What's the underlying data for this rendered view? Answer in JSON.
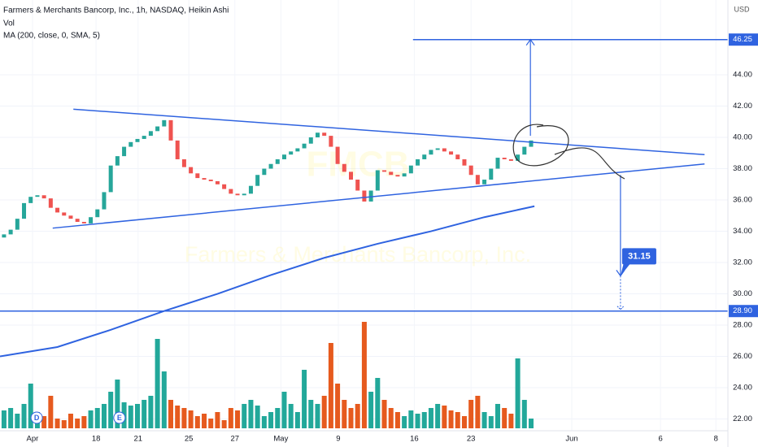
{
  "chart_data": {
    "type": "candlestick",
    "title": "Farmers & Merchants Bancorp, Inc., 1h, NASDAQ, Heikin Ashi",
    "indicators": [
      "Vol",
      "MA (200, close, 0, SMA, 5)"
    ],
    "currency": "USD",
    "watermark": {
      "symbol": "FMCB",
      "name": "Farmers & Merchants Bancorp, Inc."
    },
    "xlim": [
      -0.6,
      108.5
    ],
    "ylim": [
      21.25,
      48.78
    ],
    "grid": true,
    "up_color": "#26a69a",
    "down_color": "#ef5350",
    "volume_up_color": "#22a89a",
    "volume_down_color": "#e65a1e",
    "line_color": "#2f63e0",
    "xticks": [
      {
        "value": 4.27,
        "label": "Apr"
      },
      {
        "value": 13.8,
        "label": "18"
      },
      {
        "value": 20.1,
        "label": "21"
      },
      {
        "value": 27.7,
        "label": "25"
      },
      {
        "value": 34.6,
        "label": "27"
      },
      {
        "value": 41.5,
        "label": "May"
      },
      {
        "value": 50.1,
        "label": "9"
      },
      {
        "value": 61.5,
        "label": "16"
      },
      {
        "value": 70.0,
        "label": "23"
      },
      {
        "value": 85.1,
        "label": "Jun"
      },
      {
        "value": 98.4,
        "label": "6"
      },
      {
        "value": 106.7,
        "label": "8"
      }
    ],
    "yticks": [
      {
        "value": 22,
        "label": "22.00"
      },
      {
        "value": 24,
        "label": "24.00"
      },
      {
        "value": 26,
        "label": "26.00"
      },
      {
        "value": 28,
        "label": "28.00"
      },
      {
        "value": 30,
        "label": "30.00"
      },
      {
        "value": 32,
        "label": "32.00"
      },
      {
        "value": 34,
        "label": "34.00"
      },
      {
        "value": 36,
        "label": "36.00"
      },
      {
        "value": 38,
        "label": "38.00"
      },
      {
        "value": 40,
        "label": "40.00"
      },
      {
        "value": 42,
        "label": "42.00"
      },
      {
        "value": 44,
        "label": "44.00"
      }
    ],
    "open": [
      33.6,
      33.8,
      34.1,
      34.8,
      35.8,
      36.2,
      36.3,
      36.1,
      35.5,
      35.2,
      35.0,
      34.8,
      34.6,
      34.5,
      34.9,
      35.4,
      36.5,
      38.2,
      38.8,
      39.4,
      39.7,
      39.9,
      40.1,
      40.4,
      40.7,
      41.1,
      39.8,
      38.6,
      38.1,
      37.7,
      37.4,
      37.3,
      37.2,
      37.0,
      36.7,
      36.4,
      36.3,
      36.4,
      36.9,
      37.6,
      38.0,
      38.3,
      38.6,
      38.9,
      39.1,
      39.3,
      39.6,
      40.0,
      40.3,
      40.1,
      39.4,
      38.3,
      37.8,
      37.3,
      36.6,
      35.9,
      36.6,
      37.9,
      37.8,
      37.6,
      37.5,
      37.7,
      38.2,
      38.6,
      38.9,
      39.2,
      39.3,
      39.1,
      38.9,
      38.6,
      38.2,
      37.6,
      37.0,
      37.3,
      38.0,
      38.7,
      38.6,
      38.5,
      38.9,
      39.4
    ],
    "close": [
      33.8,
      34.1,
      34.8,
      35.8,
      36.2,
      36.3,
      36.1,
      35.5,
      35.2,
      35.0,
      34.8,
      34.6,
      34.5,
      34.9,
      35.4,
      36.5,
      38.2,
      38.8,
      39.4,
      39.7,
      39.9,
      40.1,
      40.4,
      40.7,
      41.1,
      39.8,
      38.6,
      38.1,
      37.7,
      37.4,
      37.3,
      37.2,
      37.0,
      36.7,
      36.4,
      36.3,
      36.4,
      36.9,
      37.6,
      38.0,
      38.3,
      38.6,
      38.9,
      39.1,
      39.3,
      39.6,
      40.0,
      40.3,
      40.1,
      39.4,
      38.3,
      37.8,
      37.3,
      36.6,
      35.9,
      36.6,
      37.9,
      37.8,
      37.6,
      37.5,
      37.7,
      38.2,
      38.6,
      38.9,
      39.2,
      39.3,
      39.1,
      38.9,
      38.6,
      38.2,
      37.6,
      37.0,
      37.3,
      38.0,
      38.7,
      38.6,
      38.5,
      38.9,
      39.4,
      39.8
    ],
    "volume": [
      22,
      25,
      18,
      30,
      55,
      20,
      15,
      40,
      12,
      10,
      18,
      12,
      15,
      22,
      25,
      30,
      45,
      60,
      32,
      28,
      30,
      35,
      40,
      110,
      70,
      35,
      28,
      25,
      22,
      15,
      18,
      12,
      20,
      10,
      25,
      22,
      30,
      35,
      28,
      15,
      20,
      25,
      45,
      30,
      20,
      72,
      35,
      30,
      40,
      105,
      55,
      35,
      25,
      30,
      131,
      45,
      62,
      35,
      25,
      20,
      15,
      22,
      18,
      20,
      25,
      30,
      28,
      22,
      20,
      15,
      35,
      40,
      20,
      15,
      30,
      25,
      18,
      86,
      35,
      12
    ],
    "ma": {
      "x": [
        -0.6,
        8,
        16,
        24,
        32,
        40,
        48,
        56,
        64,
        72,
        79.5
      ],
      "values": [
        26.0,
        26.6,
        27.7,
        28.9,
        30.0,
        31.2,
        32.3,
        33.2,
        34.0,
        34.9,
        35.6
      ]
    },
    "trendlines": [
      {
        "x": [
          10.4,
          105
        ],
        "values": [
          41.8,
          38.9
        ]
      },
      {
        "x": [
          7.3,
          105
        ],
        "values": [
          34.2,
          38.3
        ]
      }
    ],
    "levels": [
      {
        "value": 46.25,
        "label": "46.25",
        "x_start": 61.3
      },
      {
        "value": 28.9,
        "label": "28.90",
        "x_start": -0.6
      }
    ],
    "arrows": [
      {
        "x": 78.9,
        "from": 40.1,
        "to": 46.25
      },
      {
        "x": 92.4,
        "from": 37.6,
        "to": 31.15,
        "label": "31.15"
      }
    ],
    "events": [
      {
        "x": 4.9,
        "label": "D"
      },
      {
        "x": 17.3,
        "label": "E"
      }
    ]
  }
}
